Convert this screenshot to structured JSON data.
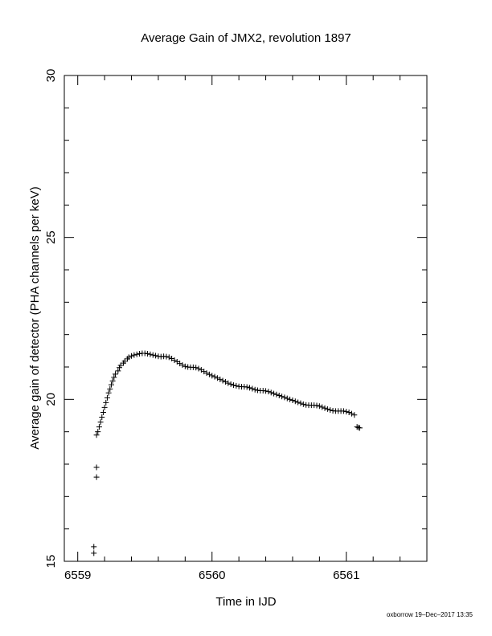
{
  "chart_data": {
    "type": "scatter",
    "title": "Average Gain of JMX2, revolution 1897",
    "xlabel": "Time in IJD",
    "ylabel": "Average gain of detector (PHA channels per keV)",
    "xlim": [
      6558.9,
      6561.6
    ],
    "ylim": [
      15,
      30
    ],
    "x_ticks": [
      6559,
      6560,
      6561
    ],
    "x_tick_labels": [
      "6559",
      "6560",
      "6561"
    ],
    "y_ticks": [
      15,
      20,
      25,
      30
    ],
    "y_tick_labels": [
      "15",
      "20",
      "25",
      "30"
    ],
    "marker": "+",
    "grid": false,
    "series": [
      {
        "points": [
          [
            6559.12,
            15.25
          ],
          [
            6559.12,
            15.45
          ],
          [
            6559.14,
            17.6
          ],
          [
            6559.14,
            17.9
          ],
          [
            6559.14,
            18.9
          ],
          [
            6559.15,
            19.0
          ],
          [
            6559.16,
            19.15
          ],
          [
            6559.17,
            19.3
          ],
          [
            6559.18,
            19.45
          ],
          [
            6559.19,
            19.6
          ],
          [
            6559.2,
            19.75
          ],
          [
            6559.21,
            19.9
          ],
          [
            6559.22,
            20.05
          ],
          [
            6559.23,
            20.2
          ],
          [
            6559.24,
            20.32
          ],
          [
            6559.25,
            20.45
          ],
          [
            6559.26,
            20.57
          ],
          [
            6559.27,
            20.68
          ],
          [
            6559.28,
            20.78
          ],
          [
            6559.3,
            20.88
          ],
          [
            6559.31,
            20.98
          ],
          [
            6559.32,
            21.05
          ],
          [
            6559.34,
            21.12
          ],
          [
            6559.35,
            21.18
          ],
          [
            6559.37,
            21.25
          ],
          [
            6559.38,
            21.3
          ],
          [
            6559.4,
            21.34
          ],
          [
            6559.42,
            21.37
          ],
          [
            6559.44,
            21.39
          ],
          [
            6559.46,
            21.41
          ],
          [
            6559.48,
            21.42
          ],
          [
            6559.5,
            21.42
          ],
          [
            6559.52,
            21.41
          ],
          [
            6559.54,
            21.39
          ],
          [
            6559.56,
            21.37
          ],
          [
            6559.58,
            21.35
          ],
          [
            6559.6,
            21.33
          ],
          [
            6559.62,
            21.32
          ],
          [
            6559.64,
            21.33
          ],
          [
            6559.66,
            21.32
          ],
          [
            6559.68,
            21.3
          ],
          [
            6559.7,
            21.26
          ],
          [
            6559.72,
            21.21
          ],
          [
            6559.74,
            21.16
          ],
          [
            6559.76,
            21.11
          ],
          [
            6559.78,
            21.06
          ],
          [
            6559.8,
            21.02
          ],
          [
            6559.82,
            21.0
          ],
          [
            6559.84,
            20.99
          ],
          [
            6559.86,
            20.99
          ],
          [
            6559.88,
            20.98
          ],
          [
            6559.9,
            20.95
          ],
          [
            6559.92,
            20.91
          ],
          [
            6559.94,
            20.86
          ],
          [
            6559.96,
            20.81
          ],
          [
            6559.98,
            20.77
          ],
          [
            6560.0,
            20.73
          ],
          [
            6560.02,
            20.7
          ],
          [
            6560.04,
            20.66
          ],
          [
            6560.06,
            20.62
          ],
          [
            6560.08,
            20.58
          ],
          [
            6560.1,
            20.54
          ],
          [
            6560.12,
            20.5
          ],
          [
            6560.14,
            20.47
          ],
          [
            6560.16,
            20.44
          ],
          [
            6560.18,
            20.42
          ],
          [
            6560.2,
            20.4
          ],
          [
            6560.22,
            20.39
          ],
          [
            6560.24,
            20.39
          ],
          [
            6560.26,
            20.38
          ],
          [
            6560.28,
            20.36
          ],
          [
            6560.3,
            20.33
          ],
          [
            6560.32,
            20.3
          ],
          [
            6560.34,
            20.28
          ],
          [
            6560.36,
            20.27
          ],
          [
            6560.38,
            20.27
          ],
          [
            6560.4,
            20.26
          ],
          [
            6560.42,
            20.24
          ],
          [
            6560.44,
            20.21
          ],
          [
            6560.46,
            20.18
          ],
          [
            6560.48,
            20.15
          ],
          [
            6560.5,
            20.12
          ],
          [
            6560.52,
            20.09
          ],
          [
            6560.54,
            20.06
          ],
          [
            6560.56,
            20.03
          ],
          [
            6560.58,
            20.0
          ],
          [
            6560.6,
            19.97
          ],
          [
            6560.62,
            19.94
          ],
          [
            6560.64,
            19.91
          ],
          [
            6560.66,
            19.88
          ],
          [
            6560.68,
            19.85
          ],
          [
            6560.7,
            19.83
          ],
          [
            6560.72,
            19.82
          ],
          [
            6560.74,
            19.82
          ],
          [
            6560.76,
            19.82
          ],
          [
            6560.78,
            19.81
          ],
          [
            6560.8,
            19.79
          ],
          [
            6560.82,
            19.76
          ],
          [
            6560.84,
            19.73
          ],
          [
            6560.86,
            19.7
          ],
          [
            6560.88,
            19.67
          ],
          [
            6560.9,
            19.65
          ],
          [
            6560.92,
            19.64
          ],
          [
            6560.94,
            19.64
          ],
          [
            6560.96,
            19.64
          ],
          [
            6560.98,
            19.64
          ],
          [
            6561.0,
            19.62
          ],
          [
            6561.02,
            19.6
          ],
          [
            6561.04,
            19.56
          ],
          [
            6561.06,
            19.52
          ],
          [
            6561.08,
            19.15
          ],
          [
            6561.09,
            19.13
          ],
          [
            6561.1,
            19.12
          ]
        ]
      }
    ]
  },
  "footer": {
    "credit": "oxborrow 19–Dec–2017 13:35"
  }
}
